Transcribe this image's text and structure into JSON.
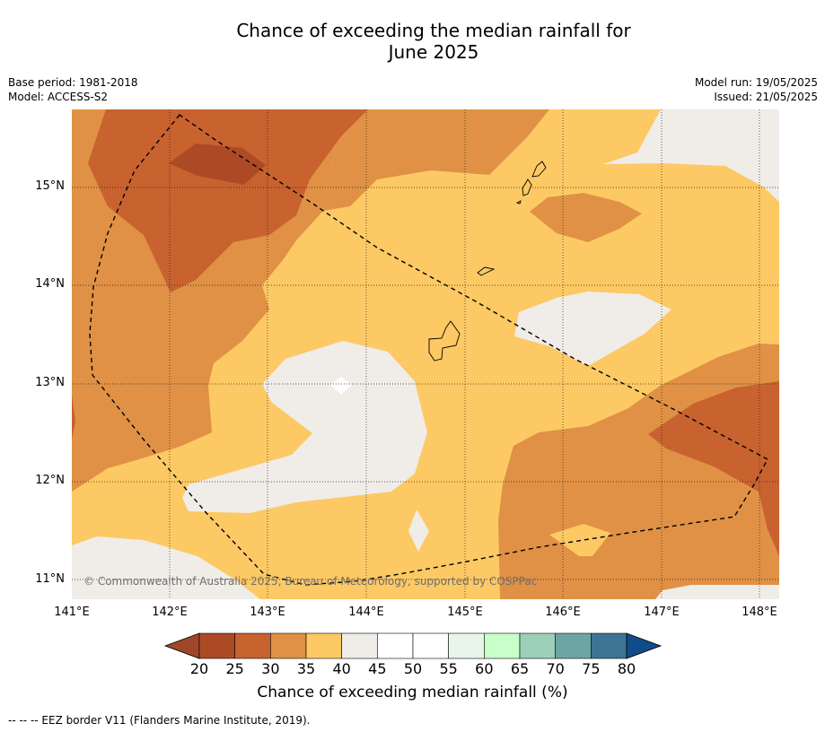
{
  "title_line1": "Chance of exceeding the median rainfall for",
  "title_line2": "June 2025",
  "meta": {
    "base_period": "Base period: 1981-2018",
    "model": "Model: ACCESS-S2",
    "model_run": "Model run: 19/05/2025",
    "issued": "Issued: 21/05/2025"
  },
  "axes": {
    "lat_labels": [
      "15°N",
      "14°N",
      "13°N",
      "12°N",
      "11°N"
    ],
    "lon_labels": [
      "141°E",
      "142°E",
      "143°E",
      "144°E",
      "145°E",
      "146°E",
      "147°E",
      "148°E"
    ]
  },
  "copyright": "© Commonwealth of Australia 2025, Bureau of Meteorology, supported by COSPPac",
  "colorbar": {
    "ticks": [
      "20",
      "25",
      "30",
      "35",
      "40",
      "45",
      "50",
      "55",
      "60",
      "65",
      "70",
      "75",
      "80"
    ],
    "label": "Chance of exceeding median rainfall (%)",
    "colors": [
      "#a0462a",
      "#ad4a26",
      "#c8622f",
      "#e09145",
      "#fdc964",
      "#f0ece7",
      "#ffffff",
      "#ffffff",
      "#e8f5e8",
      "#c9ffc9",
      "#9ccfb8",
      "#6da5a4",
      "#3d7493",
      "#124b8a"
    ]
  },
  "footnote": "-- -- -- EEZ border V11 (Flanders Marine Institute, 2019).",
  "colors": {
    "c25": "#ad4a26",
    "c30": "#c8622f",
    "c35": "#e09145",
    "c40": "#fdc964",
    "c45": "#f0ece7"
  }
}
